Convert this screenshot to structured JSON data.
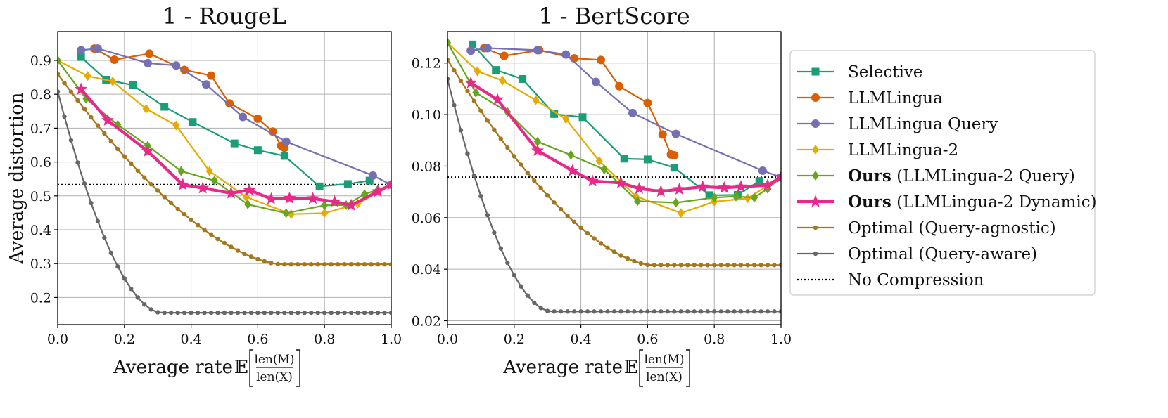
{
  "colors": {
    "selective": "#1b9e77",
    "llmlingua": "#d95f02",
    "llmlingua_query": "#7570b3",
    "llmlingua2": "#e6ab02",
    "ours_query": "#66a61e",
    "ours_dynamic": "#e7298a",
    "optimal_agnostic": "#a6761d",
    "optimal_aware": "#666666",
    "no_compression": "#000000"
  },
  "legend": {
    "items": [
      {
        "key": "selective",
        "label": "Selective",
        "bold": "",
        "marker": "square",
        "style": "solid"
      },
      {
        "key": "llmlingua",
        "label": "LLMLingua",
        "bold": "",
        "marker": "circle",
        "style": "solid"
      },
      {
        "key": "llmlingua_query",
        "label": "LLMLingua Query",
        "bold": "",
        "marker": "circle",
        "style": "solid"
      },
      {
        "key": "llmlingua2",
        "label": "LLMLingua-2",
        "bold": "",
        "marker": "diamond",
        "style": "solid"
      },
      {
        "key": "ours_query",
        "label": " (LLMLingua-2 Query)",
        "bold": "Ours",
        "marker": "diamond",
        "style": "solid"
      },
      {
        "key": "ours_dynamic",
        "label": " (LLMLingua-2 Dynamic)",
        "bold": "Ours",
        "marker": "star",
        "style": "solid"
      },
      {
        "key": "optimal_agnostic",
        "label": "Optimal (Query-agnostic)",
        "bold": "",
        "marker": "dot",
        "style": "solid"
      },
      {
        "key": "optimal_aware",
        "label": "Optimal (Query-aware)",
        "bold": "",
        "marker": "dot",
        "style": "solid"
      },
      {
        "key": "no_compression",
        "label": "No Compression",
        "bold": "",
        "marker": "none",
        "style": "dotted"
      }
    ]
  },
  "chart_data": [
    {
      "type": "line",
      "title": "1 - RougeL",
      "ylabel": "Average distortion",
      "xlabel_prefix": "Average rate ",
      "xlabel_E": "𝔼",
      "xlabel_num": "len(M)",
      "xlabel_den": "len(X)",
      "xlim": [
        0,
        1
      ],
      "ylim": [
        0.12,
        0.985
      ],
      "xticks": [
        0.0,
        0.2,
        0.4,
        0.6,
        0.8,
        1.0
      ],
      "xtick_labels": [
        "0.0",
        "0.2",
        "0.4",
        "0.6",
        "0.8",
        "1.0"
      ],
      "yticks": [
        0.2,
        0.3,
        0.4,
        0.5,
        0.6,
        0.7,
        0.8,
        0.9
      ],
      "ytick_labels": [
        "0.2",
        "0.3",
        "0.4",
        "0.5",
        "0.6",
        "0.7",
        "0.8",
        "0.9"
      ],
      "grid": true,
      "no_compression": 0.533,
      "series": [
        {
          "key": "selective",
          "name": "Selective",
          "x": [
            0.07,
            0.145,
            0.225,
            0.32,
            0.405,
            0.53,
            0.6,
            0.68,
            0.785,
            0.87,
            0.935
          ],
          "y": [
            0.91,
            0.843,
            0.827,
            0.763,
            0.718,
            0.655,
            0.635,
            0.618,
            0.528,
            0.535,
            0.545
          ]
        },
        {
          "key": "llmlingua",
          "name": "LLMLingua",
          "x": [
            0.11,
            0.17,
            0.275,
            0.38,
            0.46,
            0.515,
            0.6,
            0.645,
            0.67,
            0.68
          ],
          "y": [
            0.935,
            0.902,
            0.92,
            0.872,
            0.855,
            0.773,
            0.728,
            0.69,
            0.648,
            0.642
          ]
        },
        {
          "key": "llmlingua_query",
          "name": "LLMLingua Query",
          "x": [
            0.07,
            0.12,
            0.27,
            0.355,
            0.445,
            0.555,
            0.685,
            0.945,
            1.0
          ],
          "y": [
            0.93,
            0.935,
            0.892,
            0.885,
            0.829,
            0.733,
            0.66,
            0.56,
            0.533
          ]
        },
        {
          "key": "llmlingua2",
          "name": "LLMLingua-2",
          "x": [
            0.0,
            0.09,
            0.165,
            0.265,
            0.355,
            0.455,
            0.565,
            0.7,
            0.8,
            0.9,
            1.0
          ],
          "y": [
            0.9,
            0.854,
            0.838,
            0.757,
            0.708,
            0.573,
            0.497,
            0.446,
            0.449,
            0.477,
            0.533
          ]
        },
        {
          "key": "ours_query",
          "name": "Ours (LLMLingua-2 Query)",
          "x": [
            0.0,
            0.085,
            0.18,
            0.27,
            0.37,
            0.47,
            0.57,
            0.685,
            0.8,
            0.865,
            0.92,
            0.96,
            1.0
          ],
          "y": [
            0.9,
            0.787,
            0.71,
            0.648,
            0.573,
            0.545,
            0.475,
            0.449,
            0.472,
            0.473,
            0.505,
            0.518,
            0.533
          ]
        },
        {
          "key": "ours_dynamic",
          "name": "Ours (LLMLingua-2 Dynamic)",
          "x": [
            0.07,
            0.15,
            0.27,
            0.375,
            0.435,
            0.52,
            0.575,
            0.64,
            0.695,
            0.765,
            0.83,
            0.88,
            0.96,
            1.0
          ],
          "y": [
            0.815,
            0.723,
            0.632,
            0.533,
            0.523,
            0.508,
            0.517,
            0.491,
            0.493,
            0.492,
            0.483,
            0.472,
            0.513,
            0.533
          ]
        },
        {
          "key": "optimal_agnostic",
          "name": "Optimal (Query-agnostic)",
          "decay": {
            "start": 0.86,
            "end": 0.298,
            "xend": 0.67,
            "power": 1.6,
            "step": 0.02
          }
        },
        {
          "key": "optimal_aware",
          "name": "Optimal (Query-aware)",
          "decay": {
            "start": 0.808,
            "end": 0.155,
            "xend": 0.31,
            "power": 1.8,
            "step": 0.02
          }
        }
      ]
    },
    {
      "type": "line",
      "title": "1 - BertScore",
      "ylabel": "",
      "xlabel_prefix": "Average rate ",
      "xlabel_E": "𝔼",
      "xlabel_num": "len(M)",
      "xlabel_den": "len(X)",
      "xlim": [
        0,
        1
      ],
      "ylim": [
        0.0185,
        0.1322
      ],
      "xticks": [
        0.0,
        0.2,
        0.4,
        0.6,
        0.8,
        1.0
      ],
      "xtick_labels": [
        "0.0",
        "0.2",
        "0.4",
        "0.6",
        "0.8",
        "1.0"
      ],
      "yticks": [
        0.02,
        0.04,
        0.06,
        0.08,
        0.1,
        0.12
      ],
      "ytick_labels": [
        "0.02",
        "0.04",
        "0.06",
        "0.08",
        "0.10",
        "0.12"
      ],
      "grid": true,
      "no_compression": 0.0757,
      "series": [
        {
          "key": "selective",
          "name": "Selective",
          "x": [
            0.075,
            0.145,
            0.225,
            0.32,
            0.405,
            0.53,
            0.6,
            0.68,
            0.785,
            0.87,
            0.935
          ],
          "y": [
            0.1272,
            0.1173,
            0.1138,
            0.1002,
            0.099,
            0.0829,
            0.0826,
            0.0794,
            0.0687,
            0.0688,
            0.0742
          ]
        },
        {
          "key": "llmlingua",
          "name": "LLMLingua",
          "x": [
            0.11,
            0.17,
            0.275,
            0.38,
            0.46,
            0.515,
            0.6,
            0.645,
            0.67,
            0.68
          ],
          "y": [
            0.1258,
            0.1228,
            0.125,
            0.1218,
            0.1212,
            0.111,
            0.1045,
            0.0923,
            0.0845,
            0.0842
          ]
        },
        {
          "key": "llmlingua_query",
          "name": "LLMLingua Query",
          "x": [
            0.07,
            0.12,
            0.27,
            0.355,
            0.445,
            0.555,
            0.685,
            0.945,
            1.0
          ],
          "y": [
            0.1248,
            0.1258,
            0.125,
            0.1233,
            0.1127,
            0.1006,
            0.0925,
            0.0782,
            0.0757
          ]
        },
        {
          "key": "llmlingua2",
          "name": "LLMLingua-2",
          "x": [
            0.0,
            0.09,
            0.165,
            0.265,
            0.355,
            0.455,
            0.565,
            0.7,
            0.8,
            0.9,
            1.0
          ],
          "y": [
            0.1279,
            0.1168,
            0.1132,
            0.1056,
            0.0983,
            0.082,
            0.0683,
            0.0618,
            0.0662,
            0.0675,
            0.0757
          ]
        },
        {
          "key": "ours_query",
          "name": "Ours (LLMLingua-2 Query)",
          "x": [
            0.0,
            0.085,
            0.18,
            0.27,
            0.37,
            0.47,
            0.57,
            0.685,
            0.8,
            0.865,
            0.92,
            0.96,
            1.0
          ],
          "y": [
            0.1279,
            0.1085,
            0.101,
            0.0895,
            0.0843,
            0.0787,
            0.0664,
            0.0658,
            0.0678,
            0.0682,
            0.0678,
            0.0712,
            0.0757
          ]
        },
        {
          "key": "ours_dynamic",
          "name": "Ours (LLMLingua-2 Dynamic)",
          "x": [
            0.07,
            0.15,
            0.27,
            0.375,
            0.435,
            0.52,
            0.575,
            0.64,
            0.695,
            0.765,
            0.83,
            0.88,
            0.96,
            1.0
          ],
          "y": [
            0.1123,
            0.1058,
            0.086,
            0.0782,
            0.0742,
            0.0735,
            0.0713,
            0.0702,
            0.071,
            0.072,
            0.0716,
            0.072,
            0.0726,
            0.0757
          ]
        },
        {
          "key": "optimal_agnostic",
          "name": "Optimal (Query-agnostic)",
          "decay": {
            "start": 0.1213,
            "end": 0.0416,
            "xend": 0.61,
            "power": 1.6,
            "step": 0.02
          }
        },
        {
          "key": "optimal_aware",
          "name": "Optimal (Query-aware)",
          "decay": {
            "start": 0.1138,
            "end": 0.0236,
            "xend": 0.31,
            "power": 1.8,
            "step": 0.02
          }
        }
      ]
    }
  ]
}
